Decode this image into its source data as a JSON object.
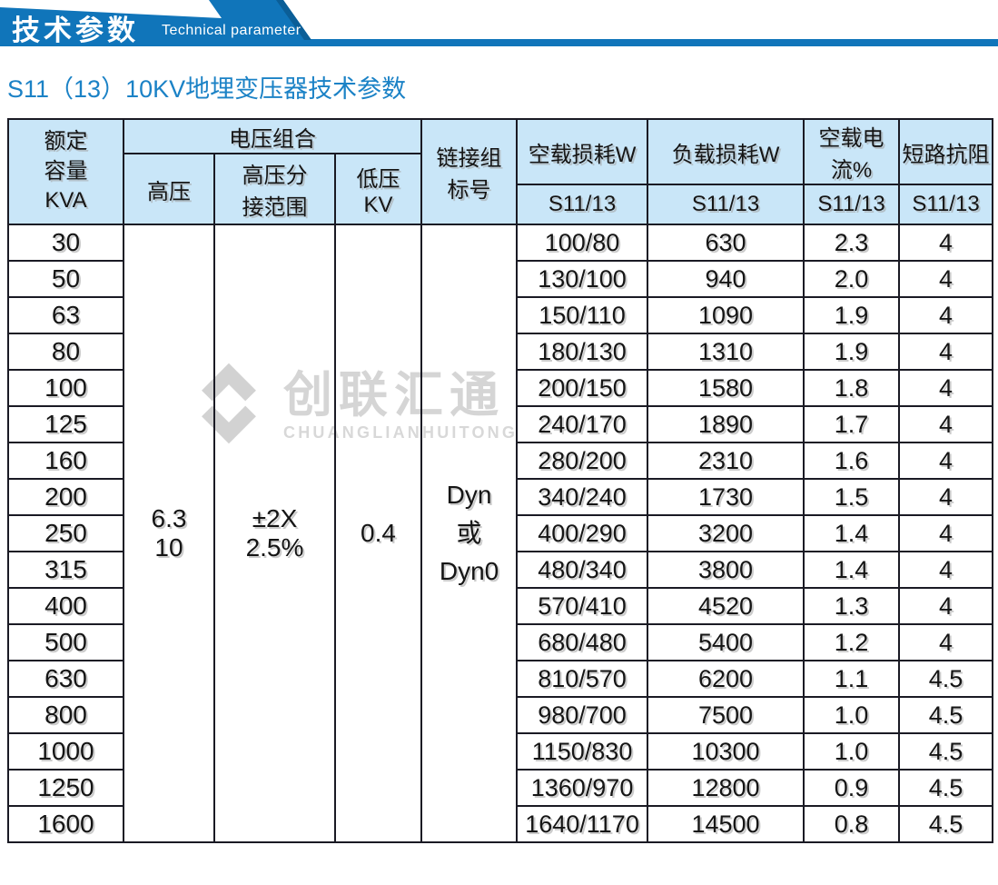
{
  "banner": {
    "title_zh": "技术参数",
    "title_en": "Technical parameter",
    "colors": {
      "blue": "#1075ba",
      "dark_blue": "#0b5e97"
    }
  },
  "section_title": "S11（13）10KV地埋变压器技术参数",
  "watermark": {
    "logo": "diamond-logo",
    "name_zh": "创联汇通",
    "name_en": "CHUANGLIANHUITONG",
    "color": "#d5d5d5"
  },
  "table": {
    "headers": {
      "capacity": "额定\n容量\nKVA",
      "voltage_group": "电压组合",
      "hv": "高压",
      "hv_tap": "高压分\n接范围",
      "lv": "低压\nKV",
      "connection": "链接组\n标号",
      "no_load_loss": "空载损耗W",
      "load_loss": "负载损耗W",
      "no_load_current": "空载电流%",
      "short_impedance": "短路抗阻",
      "sub_no_load_loss": "S11/13",
      "sub_load_loss": "S11/13",
      "sub_no_load_current": "S11/13",
      "sub_short_impedance": "S11/13"
    },
    "merged": {
      "hv_value": "6.3\n10",
      "hv_tap_value": "±2X\n2.5%",
      "lv_value": "0.4",
      "connection_value": "Dyn\n或\nDyn0"
    },
    "rows": [
      {
        "capacity": "30",
        "no_load_loss": "100/80",
        "load_loss": "630",
        "no_load_current": "2.3",
        "impedance": "4"
      },
      {
        "capacity": "50",
        "no_load_loss": "130/100",
        "load_loss": "940",
        "no_load_current": "2.0",
        "impedance": "4"
      },
      {
        "capacity": "63",
        "no_load_loss": "150/110",
        "load_loss": "1090",
        "no_load_current": "1.9",
        "impedance": "4"
      },
      {
        "capacity": "80",
        "no_load_loss": "180/130",
        "load_loss": "1310",
        "no_load_current": "1.9",
        "impedance": "4"
      },
      {
        "capacity": "100",
        "no_load_loss": "200/150",
        "load_loss": "1580",
        "no_load_current": "1.8",
        "impedance": "4"
      },
      {
        "capacity": "125",
        "no_load_loss": "240/170",
        "load_loss": "1890",
        "no_load_current": "1.7",
        "impedance": "4"
      },
      {
        "capacity": "160",
        "no_load_loss": "280/200",
        "load_loss": "2310",
        "no_load_current": "1.6",
        "impedance": "4"
      },
      {
        "capacity": "200",
        "no_load_loss": "340/240",
        "load_loss": "1730",
        "no_load_current": "1.5",
        "impedance": "4"
      },
      {
        "capacity": "250",
        "no_load_loss": "400/290",
        "load_loss": "3200",
        "no_load_current": "1.4",
        "impedance": "4"
      },
      {
        "capacity": "315",
        "no_load_loss": "480/340",
        "load_loss": "3800",
        "no_load_current": "1.4",
        "impedance": "4"
      },
      {
        "capacity": "400",
        "no_load_loss": "570/410",
        "load_loss": "4520",
        "no_load_current": "1.3",
        "impedance": "4"
      },
      {
        "capacity": "500",
        "no_load_loss": "680/480",
        "load_loss": "5400",
        "no_load_current": "1.2",
        "impedance": "4"
      },
      {
        "capacity": "630",
        "no_load_loss": "810/570",
        "load_loss": "6200",
        "no_load_current": "1.1",
        "impedance": "4.5"
      },
      {
        "capacity": "800",
        "no_load_loss": "980/700",
        "load_loss": "7500",
        "no_load_current": "1.0",
        "impedance": "4.5"
      },
      {
        "capacity": "1000",
        "no_load_loss": "1150/830",
        "load_loss": "10300",
        "no_load_current": "1.0",
        "impedance": "4.5"
      },
      {
        "capacity": "1250",
        "no_load_loss": "1360/970",
        "load_loss": "12800",
        "no_load_current": "0.9",
        "impedance": "4.5"
      },
      {
        "capacity": "1600",
        "no_load_loss": "1640/1170",
        "load_loss": "14500",
        "no_load_current": "0.8",
        "impedance": "4.5"
      }
    ]
  }
}
